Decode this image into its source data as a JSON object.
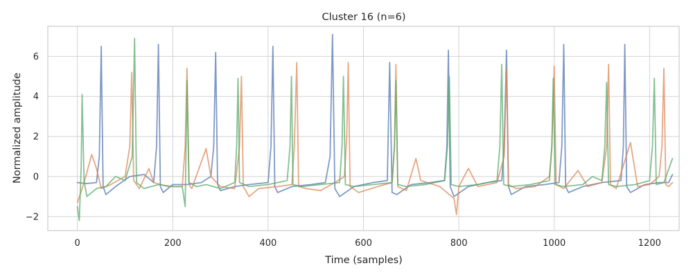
{
  "chart_data": {
    "type": "line",
    "title": "Cluster 16 (n=6)",
    "xlabel": "Time (samples)",
    "ylabel": "Normalized amplitude",
    "xlim": [
      -62,
      1262
    ],
    "ylim": [
      -2.7,
      7.5
    ],
    "xticks": [
      0,
      200,
      400,
      600,
      800,
      1000,
      1200
    ],
    "yticks": [
      -2,
      0,
      2,
      4,
      6
    ],
    "grid": true,
    "legend": "none",
    "colors": [
      "#4c72b0",
      "#dd8452",
      "#55a868"
    ],
    "series": [
      {
        "color": "#4c72b0",
        "points": [
          [
            0,
            -0.3
          ],
          [
            20,
            -0.35
          ],
          [
            40,
            -0.3
          ],
          [
            46,
            1.0
          ],
          [
            50,
            6.5
          ],
          [
            54,
            -0.5
          ],
          [
            60,
            -0.9
          ],
          [
            80,
            -0.5
          ],
          [
            110,
            0.0
          ],
          [
            140,
            0.1
          ],
          [
            160,
            -0.3
          ],
          [
            166,
            1.5
          ],
          [
            170,
            6.6
          ],
          [
            174,
            -0.5
          ],
          [
            180,
            -0.8
          ],
          [
            200,
            -0.4
          ],
          [
            230,
            -0.4
          ],
          [
            260,
            -0.3
          ],
          [
            280,
            0.0
          ],
          [
            286,
            1.5
          ],
          [
            290,
            6.2
          ],
          [
            294,
            -0.4
          ],
          [
            300,
            -0.7
          ],
          [
            330,
            -0.5
          ],
          [
            360,
            -0.4
          ],
          [
            400,
            -0.3
          ],
          [
            406,
            1.5
          ],
          [
            410,
            6.5
          ],
          [
            414,
            -0.5
          ],
          [
            420,
            -0.8
          ],
          [
            450,
            -0.5
          ],
          [
            490,
            -0.4
          ],
          [
            520,
            -0.3
          ],
          [
            530,
            1.0
          ],
          [
            535,
            7.1
          ],
          [
            540,
            -0.6
          ],
          [
            550,
            -1.0
          ],
          [
            580,
            -0.5
          ],
          [
            620,
            -0.3
          ],
          [
            650,
            -0.2
          ],
          [
            655,
            5.7
          ],
          [
            660,
            -0.8
          ],
          [
            670,
            -0.9
          ],
          [
            700,
            -0.4
          ],
          [
            740,
            -0.3
          ],
          [
            770,
            -0.2
          ],
          [
            775,
            1.5
          ],
          [
            778,
            6.3
          ],
          [
            782,
            -0.5
          ],
          [
            790,
            -1.0
          ],
          [
            820,
            -0.5
          ],
          [
            860,
            -0.3
          ],
          [
            890,
            -0.2
          ],
          [
            895,
            1.5
          ],
          [
            900,
            6.3
          ],
          [
            904,
            -0.5
          ],
          [
            910,
            -0.9
          ],
          [
            940,
            -0.5
          ],
          [
            980,
            -0.4
          ],
          [
            1010,
            -0.3
          ],
          [
            1016,
            1.5
          ],
          [
            1020,
            6.6
          ],
          [
            1024,
            -0.5
          ],
          [
            1030,
            -0.8
          ],
          [
            1060,
            -0.5
          ],
          [
            1100,
            -0.3
          ],
          [
            1140,
            -0.2
          ],
          [
            1145,
            1.5
          ],
          [
            1148,
            6.6
          ],
          [
            1152,
            -0.5
          ],
          [
            1160,
            -0.8
          ],
          [
            1190,
            -0.4
          ],
          [
            1220,
            -0.3
          ],
          [
            1240,
            -0.3
          ],
          [
            1248,
            0.1
          ]
        ]
      },
      {
        "color": "#dd8452",
        "points": [
          [
            0,
            -1.3
          ],
          [
            10,
            -0.6
          ],
          [
            20,
            0.2
          ],
          [
            30,
            1.1
          ],
          [
            40,
            0.4
          ],
          [
            50,
            -0.6
          ],
          [
            70,
            -0.4
          ],
          [
            100,
            0.0
          ],
          [
            110,
            1.5
          ],
          [
            114,
            5.2
          ],
          [
            118,
            -0.2
          ],
          [
            130,
            -0.6
          ],
          [
            150,
            0.4
          ],
          [
            160,
            -0.3
          ],
          [
            190,
            -0.5
          ],
          [
            220,
            -0.5
          ],
          [
            226,
            1.5
          ],
          [
            230,
            5.4
          ],
          [
            234,
            -0.4
          ],
          [
            240,
            -0.6
          ],
          [
            270,
            1.4
          ],
          [
            280,
            0.0
          ],
          [
            300,
            -0.5
          ],
          [
            330,
            -0.6
          ],
          [
            340,
            1.5
          ],
          [
            344,
            5.0
          ],
          [
            348,
            -0.5
          ],
          [
            360,
            -1.0
          ],
          [
            380,
            -0.6
          ],
          [
            420,
            -0.5
          ],
          [
            450,
            -0.4
          ],
          [
            455,
            1.5
          ],
          [
            460,
            5.7
          ],
          [
            464,
            -0.5
          ],
          [
            480,
            -0.6
          ],
          [
            510,
            -0.7
          ],
          [
            540,
            -0.3
          ],
          [
            560,
            0.0
          ],
          [
            565,
            2.0
          ],
          [
            568,
            5.7
          ],
          [
            572,
            -0.5
          ],
          [
            590,
            -0.8
          ],
          [
            630,
            -0.5
          ],
          [
            660,
            -0.3
          ],
          [
            665,
            1.5
          ],
          [
            668,
            5.6
          ],
          [
            672,
            -0.5
          ],
          [
            690,
            -0.7
          ],
          [
            710,
            0.9
          ],
          [
            720,
            -0.2
          ],
          [
            760,
            -0.5
          ],
          [
            790,
            -1.1
          ],
          [
            795,
            -1.9
          ],
          [
            800,
            -0.5
          ],
          [
            820,
            0.4
          ],
          [
            840,
            -0.5
          ],
          [
            880,
            -0.3
          ],
          [
            895,
            1.0
          ],
          [
            900,
            5.4
          ],
          [
            904,
            -0.4
          ],
          [
            920,
            -0.6
          ],
          [
            960,
            -0.5
          ],
          [
            990,
            0.0
          ],
          [
            995,
            1.5
          ],
          [
            1000,
            5.5
          ],
          [
            1004,
            -0.4
          ],
          [
            1020,
            -0.6
          ],
          [
            1050,
            0.3
          ],
          [
            1070,
            -0.5
          ],
          [
            1100,
            -0.3
          ],
          [
            1110,
            1.5
          ],
          [
            1114,
            5.6
          ],
          [
            1118,
            -0.4
          ],
          [
            1130,
            -0.6
          ],
          [
            1160,
            1.7
          ],
          [
            1175,
            -0.5
          ],
          [
            1200,
            -0.4
          ],
          [
            1220,
            0.0
          ],
          [
            1226,
            1.5
          ],
          [
            1230,
            5.4
          ],
          [
            1234,
            -0.4
          ],
          [
            1240,
            -0.5
          ],
          [
            1248,
            -0.3
          ]
        ]
      },
      {
        "color": "#55a868",
        "points": [
          [
            0,
            -1.5
          ],
          [
            4,
            -2.2
          ],
          [
            8,
            0.5
          ],
          [
            10,
            4.1
          ],
          [
            14,
            -0.2
          ],
          [
            20,
            -1.0
          ],
          [
            40,
            -0.6
          ],
          [
            60,
            -0.5
          ],
          [
            80,
            0.0
          ],
          [
            100,
            -0.2
          ],
          [
            115,
            1.0
          ],
          [
            120,
            6.9
          ],
          [
            124,
            -0.3
          ],
          [
            140,
            -0.6
          ],
          [
            170,
            -0.4
          ],
          [
            200,
            -0.5
          ],
          [
            220,
            -0.5
          ],
          [
            226,
            -1.5
          ],
          [
            230,
            4.8
          ],
          [
            234,
            -0.3
          ],
          [
            250,
            -0.5
          ],
          [
            270,
            -0.4
          ],
          [
            300,
            -0.6
          ],
          [
            330,
            -0.3
          ],
          [
            334,
            1.5
          ],
          [
            337,
            4.9
          ],
          [
            340,
            -0.3
          ],
          [
            360,
            -0.5
          ],
          [
            400,
            -0.4
          ],
          [
            440,
            -0.2
          ],
          [
            446,
            1.5
          ],
          [
            449,
            5.0
          ],
          [
            452,
            -0.4
          ],
          [
            470,
            -0.5
          ],
          [
            510,
            -0.4
          ],
          [
            550,
            -0.3
          ],
          [
            555,
            1.5
          ],
          [
            558,
            5.0
          ],
          [
            562,
            -0.4
          ],
          [
            580,
            -0.5
          ],
          [
            620,
            -0.4
          ],
          [
            660,
            -0.3
          ],
          [
            665,
            1.5
          ],
          [
            668,
            4.8
          ],
          [
            672,
            -0.4
          ],
          [
            690,
            -0.5
          ],
          [
            730,
            -0.4
          ],
          [
            770,
            -0.2
          ],
          [
            776,
            1.5
          ],
          [
            780,
            5.0
          ],
          [
            784,
            -0.4
          ],
          [
            800,
            -0.5
          ],
          [
            840,
            -0.4
          ],
          [
            880,
            -0.2
          ],
          [
            886,
            1.5
          ],
          [
            890,
            5.6
          ],
          [
            894,
            -0.4
          ],
          [
            910,
            -0.5
          ],
          [
            950,
            -0.4
          ],
          [
            990,
            -0.2
          ],
          [
            995,
            1.5
          ],
          [
            998,
            4.9
          ],
          [
            1002,
            -0.4
          ],
          [
            1020,
            -0.5
          ],
          [
            1060,
            -0.4
          ],
          [
            1080,
            0.0
          ],
          [
            1100,
            -0.2
          ],
          [
            1106,
            1.5
          ],
          [
            1110,
            4.7
          ],
          [
            1114,
            -0.4
          ],
          [
            1130,
            -0.5
          ],
          [
            1170,
            -0.4
          ],
          [
            1200,
            -0.2
          ],
          [
            1206,
            1.5
          ],
          [
            1210,
            4.9
          ],
          [
            1214,
            -0.4
          ],
          [
            1230,
            -0.3
          ],
          [
            1248,
            0.9
          ]
        ]
      }
    ]
  }
}
